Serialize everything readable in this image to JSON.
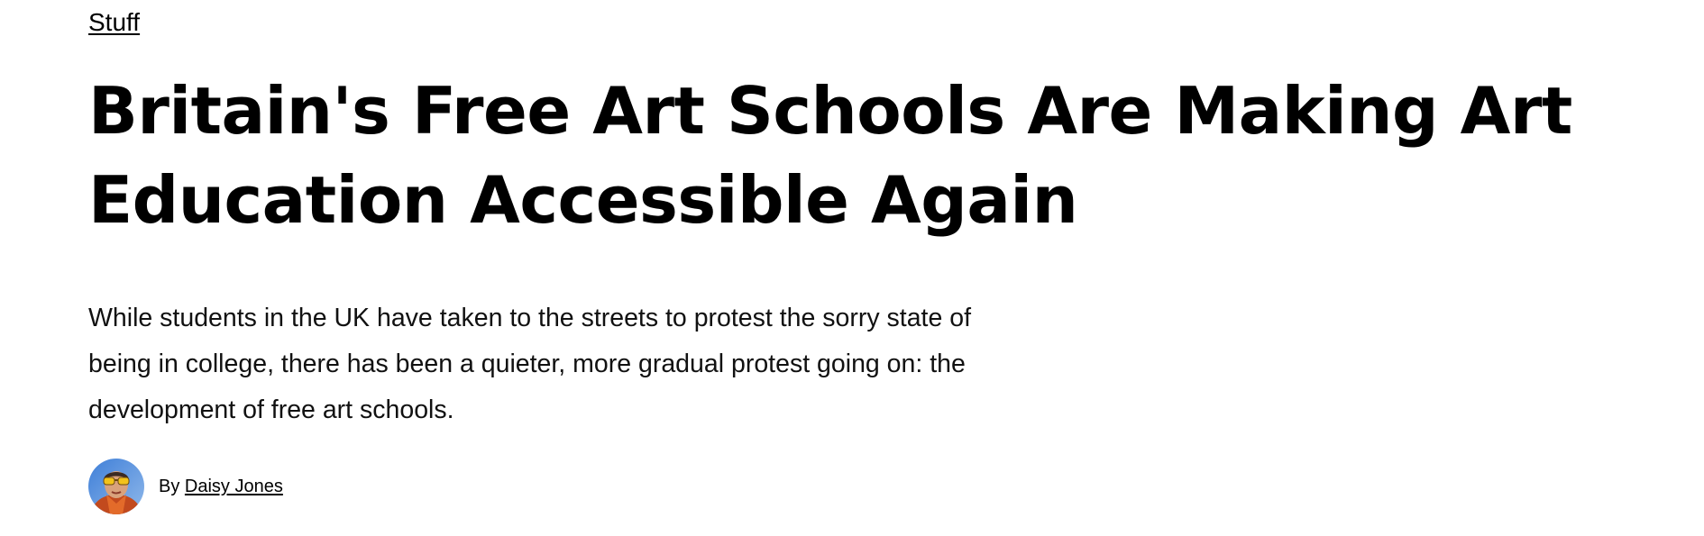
{
  "section": {
    "label": "Stuff"
  },
  "article": {
    "headline": "Britain's Free Art Schools Are Making Art Education Accessible Again",
    "dek": "While students in the UK have taken to the streets to protest the sorry state of being in college, there has been a quieter, more gradual protest going on: the development of free art schools."
  },
  "byline": {
    "prefix": "By",
    "author": "Daisy Jones",
    "avatar_icon": "author-avatar-photo"
  },
  "colors": {
    "text": "#000000",
    "background": "#ffffff"
  }
}
